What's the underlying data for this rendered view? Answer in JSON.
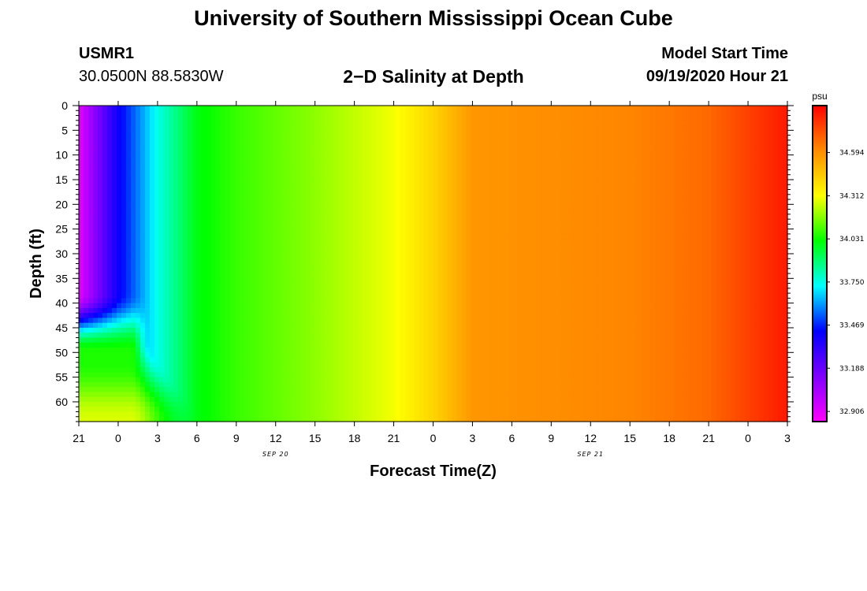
{
  "header": {
    "title": "University of Southern Mississippi Ocean Cube",
    "station_id": "USMR1",
    "station_coords": "30.0500N 88.5830W",
    "product_title": "2−D Salinity at Depth",
    "model_start_label": "Model Start Time",
    "model_start_value": "09/19/2020 Hour 21"
  },
  "footer": {
    "title": "University of Southern Mississippi Ocean Cube"
  },
  "chart_data": {
    "type": "heatmap",
    "title": "2−D Salinity at Depth",
    "xlabel": "Forecast Time(Z)",
    "ylabel": "Depth (ft)",
    "x_tick_labels": [
      "21",
      "0",
      "3",
      "6",
      "9",
      "12",
      "15",
      "18",
      "21",
      "0",
      "3",
      "6",
      "9",
      "12",
      "15",
      "18",
      "21",
      "0",
      "3"
    ],
    "x_date_labels": [
      {
        "text": "SEP 20",
        "at_tick": 5
      },
      {
        "text": "SEP 21",
        "at_tick": 13
      }
    ],
    "x_range_hours": [
      0,
      54
    ],
    "y_tick_labels": [
      "0",
      "5",
      "10",
      "15",
      "20",
      "25",
      "30",
      "35",
      "40",
      "45",
      "50",
      "55",
      "60"
    ],
    "ylim": [
      0,
      64
    ],
    "y_inverted": true,
    "colorbar": {
      "unit": "psu",
      "tick_values": [
        32.906,
        33.188,
        33.469,
        33.75,
        34.031,
        34.312,
        34.594
      ],
      "range": [
        32.84,
        34.9
      ],
      "colors_low_to_high": [
        "#ff00ff",
        "#8000ff",
        "#0000ff",
        "#00ffff",
        "#00ff00",
        "#ffff00",
        "#ff8c00",
        "#ff0000"
      ]
    },
    "salinity_profile_surface": [
      {
        "hour": 0,
        "value": 32.9
      },
      {
        "hour": 3,
        "value": 33.4
      },
      {
        "hour": 6,
        "value": 33.75
      },
      {
        "hour": 9,
        "value": 34.0
      },
      {
        "hour": 12,
        "value": 34.08
      },
      {
        "hour": 18,
        "value": 34.18
      },
      {
        "hour": 24,
        "value": 34.3
      },
      {
        "hour": 27,
        "value": 34.42
      },
      {
        "hour": 30,
        "value": 34.58
      },
      {
        "hour": 42,
        "value": 34.62
      },
      {
        "hour": 48,
        "value": 34.68
      },
      {
        "hour": 54,
        "value": 34.85
      }
    ]
  }
}
